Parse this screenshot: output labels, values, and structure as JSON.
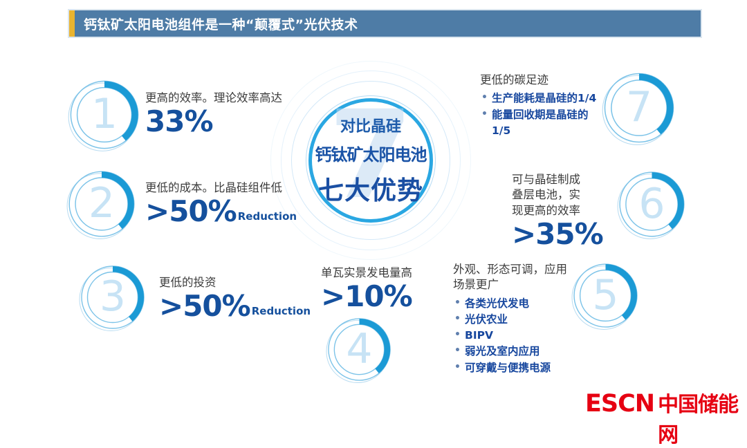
{
  "title": "钙钛矿太阳电池组件是一种“颠覆式”光伏技术",
  "hub": {
    "watermark": "7",
    "line1": "对比晶硅",
    "line2": "钙钛矿太阳电池",
    "line3": "七大优势"
  },
  "advantages": [
    {
      "num": "1",
      "desc": "更高的效率。理论效率高达",
      "value": "33%",
      "value_suffix": ""
    },
    {
      "num": "2",
      "desc": "更低的成本。比晶硅组件低",
      "value": ">50%",
      "value_suffix": "Reduction"
    },
    {
      "num": "3",
      "desc": "更低的投资",
      "value": ">50%",
      "value_suffix": "Reduction"
    },
    {
      "num": "4",
      "desc": "单瓦实景发电量高",
      "value": ">10%",
      "value_suffix": ""
    },
    {
      "num": "5",
      "desc": "外观、形态可调，应用场景更广",
      "bullets": [
        "各类光伏发电",
        "光伏农业",
        "BIPV",
        "弱光及室内应用",
        "可穿戴与便携电源"
      ]
    },
    {
      "num": "6",
      "desc": "可与晶硅制成叠层电池，实现更高的效率",
      "value": ">35%",
      "value_suffix": ""
    },
    {
      "num": "7",
      "desc": "更低的碳足迹",
      "bullets": [
        "生产能耗是晶硅的1/4",
        "能量回收期是晶硅的1/5"
      ]
    }
  ],
  "logo": {
    "en": "ESCN",
    "cn": "中国储能网"
  },
  "colors": {
    "banner_bg": "#4e7ca6",
    "banner_accent": "#e9b430",
    "ring_arc": "#1b9ad5",
    "ring_thin": "#7cc3e8",
    "ring_number": "#c7e3f5",
    "value_blue": "#15509d",
    "bullet_blue": "#17479e",
    "hub_ring": "#2aa7e2",
    "logo_red": "#e60012"
  }
}
